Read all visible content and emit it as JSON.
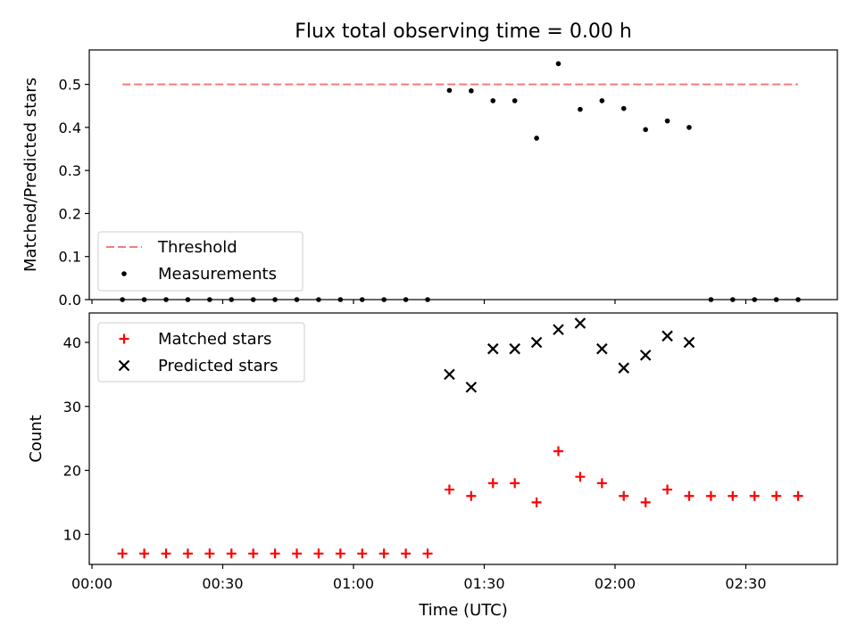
{
  "figure": {
    "title": "Flux total observing time = 0.00 h"
  },
  "colors": {
    "threshold": "#f47a7a",
    "measurements": "#000000",
    "matched": "#ff0000",
    "predicted": "#000000"
  },
  "chart_data": [
    {
      "type": "scatter",
      "title": "Flux total observing time = 0.00 h",
      "xlabel": "",
      "ylabel": "Matched/Predicted stars",
      "xlim": [
        "00:00",
        "02:51"
      ],
      "ylim": [
        0,
        0.58
      ],
      "yticks": [
        "0.0",
        "0.1",
        "0.2",
        "0.3",
        "0.4",
        "0.5"
      ],
      "grid": false,
      "legend_position": "lower-left",
      "series": [
        {
          "name": "Threshold",
          "style": "dashed-line",
          "x": [
            "00:07",
            "02:42"
          ],
          "values": [
            0.5,
            0.5
          ]
        },
        {
          "name": "Measurements",
          "style": "dot",
          "x": [
            "00:07",
            "00:12",
            "00:17",
            "00:22",
            "00:27",
            "00:32",
            "00:37",
            "00:42",
            "00:47",
            "00:52",
            "00:57",
            "01:02",
            "01:07",
            "01:12",
            "01:17",
            "01:22",
            "01:27",
            "01:32",
            "01:37",
            "01:42",
            "01:47",
            "01:52",
            "01:57",
            "02:02",
            "02:07",
            "02:12",
            "02:17",
            "02:22",
            "02:27",
            "02:32",
            "02:37",
            "02:42"
          ],
          "values": [
            0,
            0,
            0,
            0,
            0,
            0,
            0,
            0,
            0,
            0,
            0,
            0,
            0,
            0,
            0,
            0.486,
            0.485,
            0.462,
            0.462,
            0.375,
            0.548,
            0.442,
            0.462,
            0.444,
            0.395,
            0.415,
            0.4,
            0,
            0,
            0,
            0,
            0
          ]
        }
      ]
    },
    {
      "type": "scatter",
      "xlabel": "Time (UTC)",
      "ylabel": "Count",
      "xlim": [
        "00:00",
        "02:51"
      ],
      "ylim": [
        5.3,
        44.6
      ],
      "xticks": [
        "00:00",
        "00:30",
        "01:00",
        "01:30",
        "02:00",
        "02:30"
      ],
      "yticks": [
        "10",
        "20",
        "30",
        "40"
      ],
      "grid": false,
      "legend_position": "upper-left",
      "series": [
        {
          "name": "Matched stars",
          "marker": "+",
          "x": [
            "00:07",
            "00:12",
            "00:17",
            "00:22",
            "00:27",
            "00:32",
            "00:37",
            "00:42",
            "00:47",
            "00:52",
            "00:57",
            "01:02",
            "01:07",
            "01:12",
            "01:17",
            "01:22",
            "01:27",
            "01:32",
            "01:37",
            "01:42",
            "01:47",
            "01:52",
            "01:57",
            "02:02",
            "02:07",
            "02:12",
            "02:17",
            "02:22",
            "02:27",
            "02:32",
            "02:37",
            "02:42"
          ],
          "values": [
            7,
            7,
            7,
            7,
            7,
            7,
            7,
            7,
            7,
            7,
            7,
            7,
            7,
            7,
            7,
            17,
            16,
            18,
            18,
            15,
            23,
            19,
            18,
            16,
            15,
            17,
            16,
            16,
            16,
            16,
            16,
            16
          ]
        },
        {
          "name": "Predicted stars",
          "marker": "x",
          "x": [
            "01:22",
            "01:27",
            "01:32",
            "01:37",
            "01:42",
            "01:47",
            "01:52",
            "01:57",
            "02:02",
            "02:07",
            "02:12",
            "02:17"
          ],
          "values": [
            35,
            33,
            39,
            39,
            40,
            42,
            43,
            39,
            36,
            38,
            41,
            40
          ]
        }
      ]
    }
  ]
}
